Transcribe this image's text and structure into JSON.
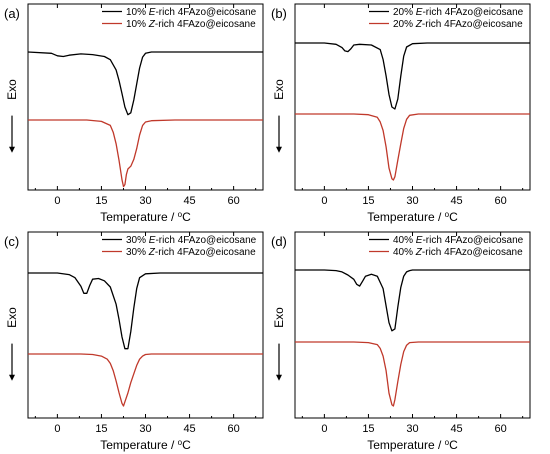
{
  "chart_data": [
    {
      "type": "line",
      "panel_label": "(a)",
      "xlabel": "Temperature / °C",
      "ylabel": "Exo",
      "xlim": [
        -10,
        70
      ],
      "xticks": [
        0,
        15,
        30,
        45,
        60
      ],
      "legend_position": "top-right",
      "series": [
        {
          "name": "10% E-rich 4FAzo@eicosane",
          "color": "#000000",
          "x": [
            -10,
            -2,
            0,
            2,
            4,
            8,
            12,
            16,
            18,
            20,
            21,
            22,
            23,
            24,
            25,
            26,
            27,
            28,
            29,
            30,
            32,
            40,
            50,
            60,
            70
          ],
          "y": [
            0.0,
            -0.02,
            -0.06,
            -0.07,
            -0.05,
            -0.03,
            -0.04,
            -0.07,
            -0.12,
            -0.28,
            -0.45,
            -0.65,
            -0.86,
            -0.98,
            -0.95,
            -0.75,
            -0.5,
            -0.25,
            -0.08,
            -0.02,
            0.0,
            0.0,
            0.0,
            0.0,
            0.0
          ]
        },
        {
          "name": "10% Z-rich 4FAzo@eicosane",
          "color": "#c0392b",
          "x": [
            -10,
            0,
            10,
            15,
            18,
            19,
            20,
            21,
            22,
            22.5,
            23,
            23.5,
            24,
            25,
            26,
            27,
            28,
            29,
            30,
            32,
            40,
            50,
            60,
            70
          ],
          "y": [
            0.0,
            0.0,
            0.0,
            -0.02,
            -0.08,
            -0.18,
            -0.35,
            -0.6,
            -0.88,
            -0.98,
            -0.95,
            -0.8,
            -0.72,
            -0.68,
            -0.58,
            -0.42,
            -0.22,
            -0.08,
            -0.03,
            -0.01,
            0.0,
            0.0,
            0.0,
            0.0
          ]
        }
      ]
    },
    {
      "type": "line",
      "panel_label": "(b)",
      "xlabel": "Temperature / °C",
      "ylabel": "Exo",
      "xlim": [
        -10,
        70
      ],
      "xticks": [
        0,
        15,
        30,
        45,
        60
      ],
      "legend_position": "top-right",
      "series": [
        {
          "name": "20% E-rich 4FAzo@eicosane",
          "color": "#000000",
          "x": [
            -10,
            0,
            4,
            6,
            7,
            8,
            9,
            10,
            12,
            16,
            19,
            20,
            21,
            22,
            23,
            24,
            25,
            26,
            27,
            28,
            30,
            35,
            45,
            60,
            70
          ],
          "y": [
            0.0,
            0.0,
            -0.02,
            -0.07,
            -0.12,
            -0.13,
            -0.09,
            -0.03,
            -0.02,
            -0.03,
            -0.1,
            -0.25,
            -0.5,
            -0.78,
            -0.97,
            -1.0,
            -0.85,
            -0.5,
            -0.2,
            -0.06,
            -0.01,
            0.0,
            0.0,
            0.0,
            0.0
          ]
        },
        {
          "name": "20% Z-rich 4FAzo@eicosane",
          "color": "#c0392b",
          "x": [
            -10,
            0,
            10,
            15,
            18,
            19,
            20,
            21,
            22,
            23,
            23.5,
            24,
            25,
            26,
            27,
            28,
            29,
            32,
            40,
            50,
            60,
            70
          ],
          "y": [
            0.0,
            0.0,
            0.0,
            -0.01,
            -0.05,
            -0.12,
            -0.25,
            -0.5,
            -0.82,
            -0.98,
            -1.0,
            -0.95,
            -0.7,
            -0.45,
            -0.22,
            -0.08,
            -0.02,
            0.0,
            0.0,
            0.0,
            0.0,
            0.0
          ]
        }
      ]
    },
    {
      "type": "line",
      "panel_label": "(c)",
      "xlabel": "Temperature / °C",
      "ylabel": "Exo",
      "xlim": [
        -10,
        70
      ],
      "xticks": [
        0,
        15,
        30,
        45,
        60
      ],
      "legend_position": "top-right",
      "series": [
        {
          "name": "30% E-rich 4FAzo@eicosane",
          "color": "#000000",
          "x": [
            -10,
            0,
            4,
            6,
            8,
            9,
            10,
            11,
            12,
            14,
            16,
            18,
            20,
            21,
            22,
            23,
            24,
            25,
            26,
            27,
            28,
            30,
            35,
            45,
            60,
            70
          ],
          "y": [
            0.0,
            0.0,
            -0.02,
            -0.06,
            -0.17,
            -0.26,
            -0.26,
            -0.16,
            -0.08,
            -0.07,
            -0.1,
            -0.18,
            -0.4,
            -0.6,
            -0.82,
            -0.97,
            -0.97,
            -0.75,
            -0.45,
            -0.2,
            -0.06,
            -0.01,
            0.0,
            0.0,
            0.0,
            0.0
          ]
        },
        {
          "name": "30% Z-rich 4FAzo@eicosane",
          "color": "#c0392b",
          "x": [
            -10,
            0,
            8,
            12,
            15,
            17,
            18,
            19,
            20,
            21,
            22,
            22.5,
            23,
            24,
            25,
            26,
            27,
            28,
            29,
            30,
            32,
            40,
            50,
            60,
            70
          ],
          "y": [
            0.0,
            0.0,
            0.0,
            -0.01,
            -0.04,
            -0.1,
            -0.18,
            -0.32,
            -0.52,
            -0.75,
            -0.95,
            -1.0,
            -0.92,
            -0.75,
            -0.55,
            -0.38,
            -0.22,
            -0.1,
            -0.04,
            -0.01,
            0.0,
            0.0,
            0.0,
            0.0,
            0.0
          ]
        }
      ]
    },
    {
      "type": "line",
      "panel_label": "(d)",
      "xlabel": "Temperature / °C",
      "ylabel": "Exo",
      "xlim": [
        -10,
        70
      ],
      "xticks": [
        0,
        15,
        30,
        45,
        60
      ],
      "legend_position": "top-right",
      "series": [
        {
          "name": "40% E-rich 4FAzo@eicosane",
          "color": "#000000",
          "x": [
            -10,
            0,
            4,
            6,
            8,
            10,
            11,
            12,
            13,
            14,
            16,
            18,
            20,
            21,
            22,
            23,
            24,
            25,
            26,
            27,
            28,
            29,
            30,
            35,
            45,
            60,
            70
          ],
          "y": [
            0.0,
            0.0,
            -0.01,
            -0.03,
            -0.08,
            -0.15,
            -0.23,
            -0.26,
            -0.18,
            -0.1,
            -0.07,
            -0.1,
            -0.3,
            -0.58,
            -0.85,
            -0.98,
            -0.95,
            -0.6,
            -0.28,
            -0.1,
            -0.03,
            -0.01,
            0.0,
            0.0,
            0.0,
            0.0,
            0.0
          ]
        },
        {
          "name": "40% Z-rich 4FAzo@eicosane",
          "color": "#c0392b",
          "x": [
            -10,
            0,
            10,
            15,
            18,
            19,
            20,
            21,
            22,
            23,
            23.5,
            24,
            25,
            26,
            27,
            28,
            29,
            32,
            40,
            50,
            60,
            70
          ],
          "y": [
            0.0,
            0.0,
            0.0,
            -0.01,
            -0.04,
            -0.1,
            -0.22,
            -0.45,
            -0.8,
            -0.98,
            -1.0,
            -0.9,
            -0.62,
            -0.35,
            -0.15,
            -0.05,
            -0.01,
            0.0,
            0.0,
            0.0,
            0.0,
            0.0
          ]
        }
      ]
    }
  ]
}
